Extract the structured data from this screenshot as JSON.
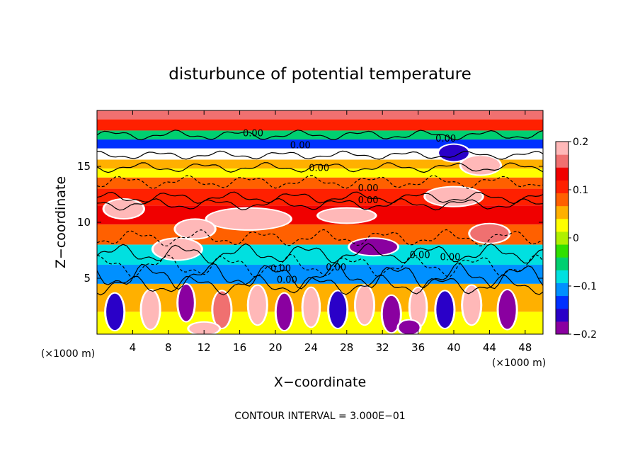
{
  "chart_data": {
    "type": "heatmap",
    "title": "disturbunce of potential temperature",
    "xlabel": "X−coordinate",
    "ylabel": "Z−coordinate",
    "x_unit_label": "(×1000 m)",
    "y_unit_label": "(×1000 m)",
    "footer": "CONTOUR INTERVAL = 3.000E−01",
    "x_range": [
      0,
      50
    ],
    "y_range": [
      0,
      20
    ],
    "x_ticks": [
      4,
      8,
      12,
      16,
      20,
      24,
      28,
      32,
      36,
      40,
      44,
      48
    ],
    "x_tick_labels": [
      "4",
      "8",
      "12",
      "16",
      "20",
      "24",
      "28",
      "32",
      "36",
      "40",
      "44",
      "48"
    ],
    "y_ticks": [
      5,
      10,
      15
    ],
    "y_tick_labels": [
      "5",
      "10",
      "15"
    ],
    "colorbar": {
      "range": [
        -0.2,
        0.2
      ],
      "ticks": [
        0.2,
        0.1,
        0,
        -0.1,
        -0.2
      ],
      "tick_labels": [
        "0.2",
        "0.1",
        "0",
        "−0.1",
        "−0.2"
      ],
      "colors": [
        "#8a00a0",
        "#2a00c8",
        "#0030ff",
        "#0090ff",
        "#00e0e0",
        "#00d070",
        "#30e000",
        "#b0f000",
        "#ffff00",
        "#ffb000",
        "#ff6000",
        "#ff2000",
        "#f00000",
        "#f07070",
        "#ffb8b8"
      ]
    },
    "contour_labels": [
      {
        "text": "0.00",
        "x": 17.5,
        "y": 17.7
      },
      {
        "text": "0.00",
        "x": 22.8,
        "y": 16.6
      },
      {
        "text": "0.00",
        "x": 39.1,
        "y": 17.2
      },
      {
        "text": "0.00",
        "x": 24.9,
        "y": 14.6
      },
      {
        "text": "0.00",
        "x": 30.4,
        "y": 12.8
      },
      {
        "text": "0.00",
        "x": 30.4,
        "y": 11.7
      },
      {
        "text": "0.00",
        "x": 36.2,
        "y": 6.8
      },
      {
        "text": "0.00",
        "x": 39.6,
        "y": 6.6
      },
      {
        "text": "0.00",
        "x": 20.6,
        "y": 5.6
      },
      {
        "text": "0.00",
        "x": 26.8,
        "y": 5.7
      },
      {
        "text": "0.00",
        "x": 21.3,
        "y": 4.6
      }
    ],
    "bands": [
      {
        "y0": 19.2,
        "y1": 20,
        "value": 0.16
      },
      {
        "y0": 18.2,
        "y1": 19.2,
        "value": 0.11
      },
      {
        "y0": 17.4,
        "y1": 18.2,
        "value": -0.04
      },
      {
        "y0": 16.6,
        "y1": 17.4,
        "value": -0.13
      },
      {
        "y0": 15.6,
        "y1": 16.6,
        "value": 0.01
      },
      {
        "y0": 14.8,
        "y1": 15.6,
        "value": 0.06
      },
      {
        "y0": 14.0,
        "y1": 14.8,
        "value": 0.03
      },
      {
        "y0": 13.0,
        "y1": 14.0,
        "value": 0.08
      },
      {
        "y0": 11.5,
        "y1": 13.0,
        "value": 0.1
      },
      {
        "y0": 9.8,
        "y1": 11.5,
        "value": 0.13
      },
      {
        "y0": 8.0,
        "y1": 9.8,
        "value": 0.09
      },
      {
        "y0": 6.2,
        "y1": 8.0,
        "value": -0.07
      },
      {
        "y0": 4.5,
        "y1": 6.2,
        "value": -0.12
      },
      {
        "y0": 2.0,
        "y1": 4.5,
        "value": 0.05
      },
      {
        "y0": 0,
        "y1": 2.0,
        "value": 0.02
      }
    ],
    "anomalies": [
      {
        "x": 17,
        "y": 10.3,
        "w": 9,
        "h": 1.6,
        "value": 0.2
      },
      {
        "x": 11,
        "y": 9.4,
        "w": 4,
        "h": 1.4,
        "value": 0.2
      },
      {
        "x": 28,
        "y": 10.6,
        "w": 6,
        "h": 1.0,
        "value": 0.2
      },
      {
        "x": 40,
        "y": 12.3,
        "w": 6,
        "h": 1.4,
        "value": 0.2
      },
      {
        "x": 43,
        "y": 15.1,
        "w": 4,
        "h": 1.4,
        "value": 0.2
      },
      {
        "x": 40,
        "y": 16.2,
        "w": 3,
        "h": 1.2,
        "value": -0.15
      },
      {
        "x": 3,
        "y": 11.2,
        "w": 4,
        "h": 1.4,
        "value": 0.2
      },
      {
        "x": 9,
        "y": 7.6,
        "w": 5,
        "h": 1.6,
        "value": 0.2
      },
      {
        "x": 31,
        "y": 7.8,
        "w": 5,
        "h": 1.2,
        "value": -0.18
      },
      {
        "x": 44,
        "y": 9.0,
        "w": 4,
        "h": 1.4,
        "value": 0.15
      },
      {
        "x": 6,
        "y": 2.2,
        "w": 1.6,
        "h": 3.2,
        "value": 0.2
      },
      {
        "x": 10,
        "y": 2.8,
        "w": 1.4,
        "h": 3.0,
        "value": -0.2
      },
      {
        "x": 14,
        "y": 2.2,
        "w": 1.6,
        "h": 3.0,
        "value": 0.15
      },
      {
        "x": 18,
        "y": 2.6,
        "w": 1.6,
        "h": 3.2,
        "value": 0.2
      },
      {
        "x": 21,
        "y": 2.0,
        "w": 1.4,
        "h": 3.0,
        "value": -0.2
      },
      {
        "x": 24,
        "y": 2.4,
        "w": 1.4,
        "h": 3.2,
        "value": 0.2
      },
      {
        "x": 27,
        "y": 2.2,
        "w": 1.6,
        "h": 3.0,
        "value": -0.15
      },
      {
        "x": 30,
        "y": 2.6,
        "w": 1.6,
        "h": 3.2,
        "value": 0.2
      },
      {
        "x": 33,
        "y": 1.8,
        "w": 1.6,
        "h": 3.0,
        "value": -0.2
      },
      {
        "x": 36,
        "y": 2.4,
        "w": 1.4,
        "h": 3.2,
        "value": 0.2
      },
      {
        "x": 39,
        "y": 2.2,
        "w": 1.6,
        "h": 3.0,
        "value": -0.15
      },
      {
        "x": 42,
        "y": 2.6,
        "w": 1.6,
        "h": 3.2,
        "value": 0.2
      },
      {
        "x": 46,
        "y": 2.2,
        "w": 1.6,
        "h": 3.2,
        "value": -0.2
      },
      {
        "x": 2,
        "y": 2.0,
        "w": 1.6,
        "h": 3.0,
        "value": -0.15
      },
      {
        "x": 35,
        "y": 0.6,
        "w": 2,
        "h": 1.0,
        "value": -0.2
      },
      {
        "x": 12,
        "y": 0.5,
        "w": 3,
        "h": 0.8,
        "value": 0.2
      }
    ],
    "contour_lines": [
      {
        "y": 17.8,
        "amp": 0.3,
        "dashed": false
      },
      {
        "y": 16.0,
        "amp": 0.25,
        "dashed": false
      },
      {
        "y": 14.9,
        "amp": 0.3,
        "dashed": false
      },
      {
        "y": 13.6,
        "amp": 0.4,
        "dashed": true
      },
      {
        "y": 12.2,
        "amp": 0.35,
        "dashed": false
      },
      {
        "y": 11.6,
        "amp": 0.35,
        "dashed": false
      },
      {
        "y": 8.6,
        "amp": 0.5,
        "dashed": true
      },
      {
        "y": 7.2,
        "amp": 0.6,
        "dashed": false
      },
      {
        "y": 6.1,
        "amp": 0.7,
        "dashed": true
      },
      {
        "y": 5.2,
        "amp": 0.8,
        "dashed": false
      },
      {
        "y": 4.4,
        "amp": 0.6,
        "dashed": false
      }
    ]
  }
}
